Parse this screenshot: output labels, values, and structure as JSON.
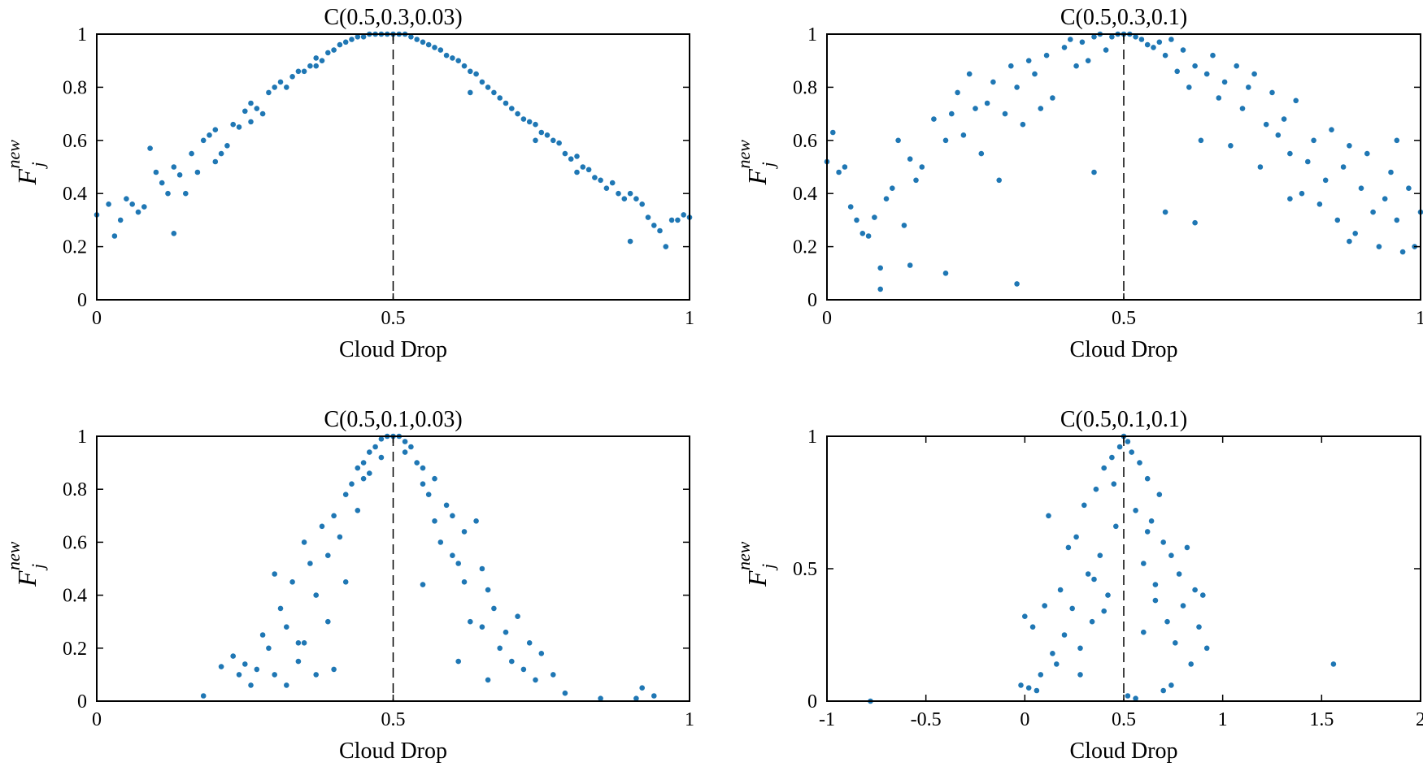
{
  "style": {
    "marker_color": "#1f77b4",
    "axis_color": "#000000",
    "center_line": "dashed"
  },
  "chart_data": [
    {
      "type": "scatter",
      "title": "C(0.5,0.3,0.03)",
      "xlabel": "Cloud Drop",
      "ylabel": {
        "base": "F",
        "sup": "new",
        "sub": "j"
      },
      "xlim": [
        0,
        1
      ],
      "ylim": [
        0,
        1
      ],
      "xticks": [
        0,
        0.5,
        1
      ],
      "xtick_labels": [
        "0",
        "0.5",
        "1"
      ],
      "yticks": [
        0,
        0.2,
        0.4,
        0.6,
        0.8,
        1
      ],
      "ytick_labels": [
        "0",
        "0.2",
        "0.4",
        "0.6",
        "0.8",
        "1"
      ],
      "vline_x": 0.5,
      "x": [
        0.0,
        0.02,
        0.03,
        0.04,
        0.05,
        0.06,
        0.07,
        0.08,
        0.09,
        0.1,
        0.11,
        0.12,
        0.13,
        0.14,
        0.15,
        0.16,
        0.17,
        0.18,
        0.19,
        0.2,
        0.21,
        0.22,
        0.23,
        0.24,
        0.25,
        0.26,
        0.27,
        0.28,
        0.29,
        0.3,
        0.31,
        0.32,
        0.33,
        0.34,
        0.35,
        0.36,
        0.37,
        0.38,
        0.39,
        0.4,
        0.41,
        0.42,
        0.43,
        0.44,
        0.45,
        0.46,
        0.47,
        0.48,
        0.49,
        0.5,
        0.51,
        0.52,
        0.53,
        0.54,
        0.55,
        0.56,
        0.57,
        0.58,
        0.59,
        0.6,
        0.61,
        0.62,
        0.63,
        0.64,
        0.65,
        0.66,
        0.67,
        0.68,
        0.69,
        0.7,
        0.71,
        0.72,
        0.73,
        0.74,
        0.75,
        0.76,
        0.77,
        0.78,
        0.79,
        0.8,
        0.81,
        0.82,
        0.83,
        0.84,
        0.85,
        0.86,
        0.87,
        0.88,
        0.89,
        0.9,
        0.91,
        0.92,
        0.93,
        0.94,
        0.95,
        0.96,
        0.97,
        0.98,
        0.99,
        1.0,
        0.13,
        0.2,
        0.26,
        0.37,
        0.63,
        0.74,
        0.81,
        0.9
      ],
      "y": [
        0.32,
        0.36,
        0.24,
        0.3,
        0.38,
        0.36,
        0.33,
        0.35,
        0.57,
        0.48,
        0.44,
        0.4,
        0.5,
        0.47,
        0.4,
        0.55,
        0.48,
        0.6,
        0.62,
        0.64,
        0.55,
        0.58,
        0.66,
        0.65,
        0.71,
        0.74,
        0.72,
        0.7,
        0.78,
        0.8,
        0.82,
        0.8,
        0.84,
        0.86,
        0.86,
        0.88,
        0.91,
        0.9,
        0.93,
        0.94,
        0.96,
        0.97,
        0.98,
        0.99,
        0.99,
        1.0,
        1.0,
        1.0,
        1.0,
        1.0,
        1.0,
        1.0,
        0.99,
        0.98,
        0.97,
        0.96,
        0.95,
        0.94,
        0.92,
        0.91,
        0.9,
        0.88,
        0.86,
        0.85,
        0.82,
        0.8,
        0.78,
        0.76,
        0.74,
        0.72,
        0.7,
        0.68,
        0.67,
        0.66,
        0.63,
        0.62,
        0.6,
        0.59,
        0.55,
        0.53,
        0.54,
        0.5,
        0.49,
        0.46,
        0.45,
        0.42,
        0.44,
        0.4,
        0.38,
        0.4,
        0.38,
        0.36,
        0.31,
        0.28,
        0.26,
        0.2,
        0.3,
        0.3,
        0.32,
        0.31,
        0.25,
        0.52,
        0.67,
        0.88,
        0.78,
        0.6,
        0.48,
        0.22
      ]
    },
    {
      "type": "scatter",
      "title": "C(0.5,0.3,0.1)",
      "xlabel": "Cloud Drop",
      "ylabel": {
        "base": "F",
        "sup": "new",
        "sub": "j"
      },
      "xlim": [
        0,
        1
      ],
      "ylim": [
        0,
        1
      ],
      "xticks": [
        0,
        0.5,
        1
      ],
      "xtick_labels": [
        "0",
        "0.5",
        "1"
      ],
      "yticks": [
        0,
        0.2,
        0.4,
        0.6,
        0.8,
        1
      ],
      "ytick_labels": [
        "0",
        "0.2",
        "0.4",
        "0.6",
        "0.8",
        "1"
      ],
      "vline_x": 0.5,
      "x": [
        0.0,
        0.01,
        0.02,
        0.03,
        0.04,
        0.05,
        0.06,
        0.07,
        0.08,
        0.09,
        0.1,
        0.11,
        0.12,
        0.13,
        0.14,
        0.15,
        0.16,
        0.18,
        0.2,
        0.21,
        0.22,
        0.23,
        0.24,
        0.25,
        0.26,
        0.27,
        0.28,
        0.29,
        0.3,
        0.31,
        0.32,
        0.33,
        0.34,
        0.35,
        0.36,
        0.37,
        0.38,
        0.4,
        0.41,
        0.42,
        0.43,
        0.44,
        0.45,
        0.46,
        0.47,
        0.48,
        0.49,
        0.5,
        0.51,
        0.52,
        0.53,
        0.54,
        0.55,
        0.56,
        0.57,
        0.58,
        0.59,
        0.6,
        0.61,
        0.62,
        0.63,
        0.64,
        0.65,
        0.66,
        0.67,
        0.68,
        0.69,
        0.7,
        0.71,
        0.72,
        0.73,
        0.74,
        0.75,
        0.76,
        0.77,
        0.78,
        0.79,
        0.8,
        0.81,
        0.82,
        0.83,
        0.84,
        0.85,
        0.86,
        0.87,
        0.88,
        0.89,
        0.9,
        0.91,
        0.92,
        0.93,
        0.94,
        0.95,
        0.96,
        0.97,
        0.98,
        0.99,
        1.0,
        0.09,
        0.14,
        0.2,
        0.32,
        0.45,
        0.57,
        0.62,
        0.78,
        0.88,
        0.96
      ],
      "y": [
        0.52,
        0.63,
        0.48,
        0.5,
        0.35,
        0.3,
        0.25,
        0.24,
        0.31,
        0.12,
        0.38,
        0.42,
        0.6,
        0.28,
        0.53,
        0.45,
        0.5,
        0.68,
        0.6,
        0.7,
        0.78,
        0.62,
        0.85,
        0.72,
        0.55,
        0.74,
        0.82,
        0.45,
        0.7,
        0.88,
        0.8,
        0.66,
        0.9,
        0.85,
        0.72,
        0.92,
        0.76,
        0.95,
        0.98,
        0.88,
        0.97,
        0.9,
        0.99,
        1.0,
        0.94,
        0.99,
        1.0,
        1.0,
        1.0,
        0.99,
        0.98,
        0.96,
        0.95,
        0.97,
        0.92,
        0.98,
        0.86,
        0.94,
        0.8,
        0.88,
        0.6,
        0.85,
        0.92,
        0.76,
        0.82,
        0.58,
        0.88,
        0.72,
        0.8,
        0.85,
        0.5,
        0.66,
        0.78,
        0.62,
        0.68,
        0.55,
        0.75,
        0.4,
        0.52,
        0.6,
        0.36,
        0.45,
        0.64,
        0.3,
        0.5,
        0.58,
        0.25,
        0.42,
        0.55,
        0.33,
        0.2,
        0.38,
        0.48,
        0.3,
        0.18,
        0.42,
        0.2,
        0.33,
        0.04,
        0.13,
        0.1,
        0.06,
        0.48,
        0.33,
        0.29,
        0.38,
        0.22,
        0.6
      ]
    },
    {
      "type": "scatter",
      "title": "C(0.5,0.1,0.03)",
      "xlabel": "Cloud Drop",
      "ylabel": {
        "base": "F",
        "sup": "new",
        "sub": "j"
      },
      "xlim": [
        0,
        1
      ],
      "ylim": [
        0,
        1
      ],
      "xticks": [
        0,
        0.5,
        1
      ],
      "xtick_labels": [
        "0",
        "0.5",
        "1"
      ],
      "yticks": [
        0,
        0.2,
        0.4,
        0.6,
        0.8,
        1
      ],
      "ytick_labels": [
        "0",
        "0.2",
        "0.4",
        "0.6",
        "0.8",
        "1"
      ],
      "vline_x": 0.5,
      "x": [
        0.18,
        0.21,
        0.23,
        0.24,
        0.25,
        0.26,
        0.27,
        0.28,
        0.29,
        0.3,
        0.3,
        0.31,
        0.32,
        0.32,
        0.33,
        0.34,
        0.35,
        0.35,
        0.36,
        0.37,
        0.37,
        0.38,
        0.39,
        0.39,
        0.4,
        0.41,
        0.42,
        0.42,
        0.43,
        0.44,
        0.44,
        0.45,
        0.46,
        0.46,
        0.47,
        0.48,
        0.48,
        0.49,
        0.5,
        0.51,
        0.52,
        0.52,
        0.53,
        0.54,
        0.55,
        0.55,
        0.56,
        0.57,
        0.57,
        0.58,
        0.59,
        0.6,
        0.6,
        0.61,
        0.62,
        0.62,
        0.63,
        0.64,
        0.65,
        0.65,
        0.66,
        0.67,
        0.68,
        0.69,
        0.7,
        0.71,
        0.72,
        0.73,
        0.74,
        0.75,
        0.77,
        0.79,
        0.85,
        0.91,
        0.94,
        0.92,
        0.34,
        0.4,
        0.45,
        0.55,
        0.61,
        0.66
      ],
      "y": [
        0.02,
        0.13,
        0.17,
        0.1,
        0.14,
        0.06,
        0.12,
        0.25,
        0.2,
        0.48,
        0.1,
        0.35,
        0.28,
        0.06,
        0.45,
        0.15,
        0.6,
        0.22,
        0.52,
        0.4,
        0.1,
        0.66,
        0.55,
        0.3,
        0.7,
        0.62,
        0.78,
        0.45,
        0.82,
        0.88,
        0.72,
        0.9,
        0.94,
        0.86,
        0.96,
        0.99,
        0.92,
        1.0,
        1.0,
        1.0,
        0.98,
        0.94,
        0.96,
        0.9,
        0.88,
        0.82,
        0.78,
        0.68,
        0.84,
        0.6,
        0.74,
        0.55,
        0.7,
        0.52,
        0.64,
        0.45,
        0.3,
        0.68,
        0.28,
        0.5,
        0.42,
        0.35,
        0.2,
        0.26,
        0.15,
        0.32,
        0.12,
        0.22,
        0.08,
        0.18,
        0.1,
        0.03,
        0.01,
        0.01,
        0.02,
        0.05,
        0.22,
        0.12,
        0.84,
        0.44,
        0.15,
        0.08
      ]
    },
    {
      "type": "scatter",
      "title": "C(0.5,0.1,0.1)",
      "xlabel": "Cloud Drop",
      "ylabel": {
        "base": "F",
        "sup": "new",
        "sub": "j"
      },
      "xlim": [
        -1,
        2
      ],
      "ylim": [
        0,
        1
      ],
      "xticks": [
        -1,
        -0.5,
        0,
        0.5,
        1,
        1.5,
        2
      ],
      "xtick_labels": [
        "-1",
        "-0.5",
        "0",
        "0.5",
        "1",
        "1.5",
        "2"
      ],
      "yticks": [
        0,
        0.5,
        1
      ],
      "ytick_labels": [
        "0",
        "0.5",
        "1"
      ],
      "vline_x": 0.5,
      "x": [
        -0.78,
        -0.02,
        0.0,
        0.02,
        0.04,
        0.06,
        0.08,
        0.1,
        0.12,
        0.14,
        0.16,
        0.18,
        0.2,
        0.22,
        0.24,
        0.26,
        0.28,
        0.3,
        0.32,
        0.34,
        0.36,
        0.38,
        0.4,
        0.42,
        0.44,
        0.46,
        0.48,
        0.5,
        0.52,
        0.54,
        0.56,
        0.58,
        0.6,
        0.62,
        0.64,
        0.66,
        0.68,
        0.7,
        0.72,
        0.74,
        0.76,
        0.78,
        0.8,
        0.82,
        0.84,
        0.86,
        0.88,
        0.9,
        0.92,
        0.52,
        0.56,
        0.7,
        1.56,
        0.45,
        0.35,
        0.62,
        0.28,
        0.74,
        0.4,
        0.6,
        0.66
      ],
      "y": [
        0.0,
        0.06,
        0.32,
        0.05,
        0.28,
        0.04,
        0.1,
        0.36,
        0.7,
        0.18,
        0.14,
        0.42,
        0.25,
        0.58,
        0.35,
        0.62,
        0.2,
        0.74,
        0.48,
        0.3,
        0.8,
        0.55,
        0.88,
        0.4,
        0.92,
        0.66,
        0.96,
        1.0,
        0.98,
        0.94,
        0.72,
        0.9,
        0.52,
        0.84,
        0.68,
        0.44,
        0.78,
        0.6,
        0.3,
        0.55,
        0.22,
        0.48,
        0.36,
        0.58,
        0.14,
        0.42,
        0.28,
        0.4,
        0.2,
        0.02,
        0.01,
        0.04,
        0.14,
        0.82,
        0.46,
        0.64,
        0.1,
        0.06,
        0.34,
        0.26,
        0.38
      ]
    }
  ]
}
